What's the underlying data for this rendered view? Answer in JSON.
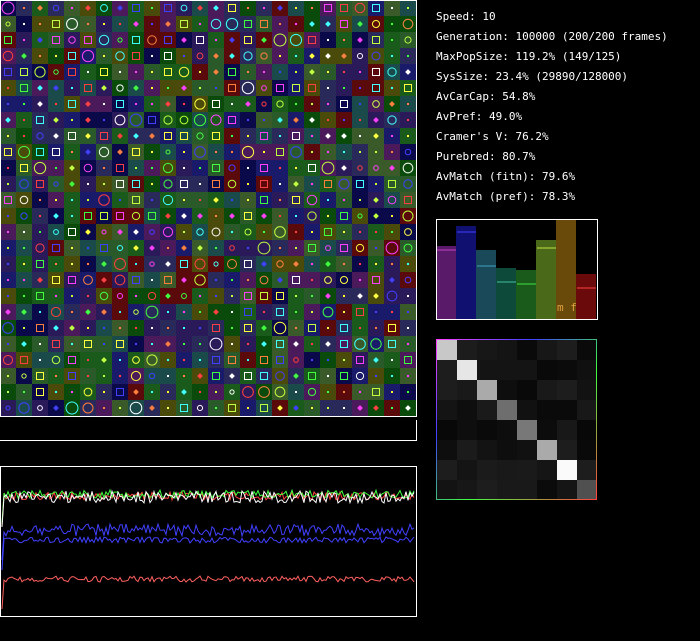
{
  "stats": [
    "Speed: 10",
    "Generation: 100000 (200/200 frames)",
    "MaxPopSize: 119.2% (149/125)",
    "SysSize: 23.4% (29890/128000)",
    "AvCarCap: 54.8%",
    "AvPref: 49.0%",
    "Cramer's V: 76.2%",
    "Purebred: 80.7%",
    "AvMatch (fitn): 79.6%",
    "AvMatch (pref): 78.3%"
  ],
  "bar_panel": {
    "label": "m f"
  }
}
